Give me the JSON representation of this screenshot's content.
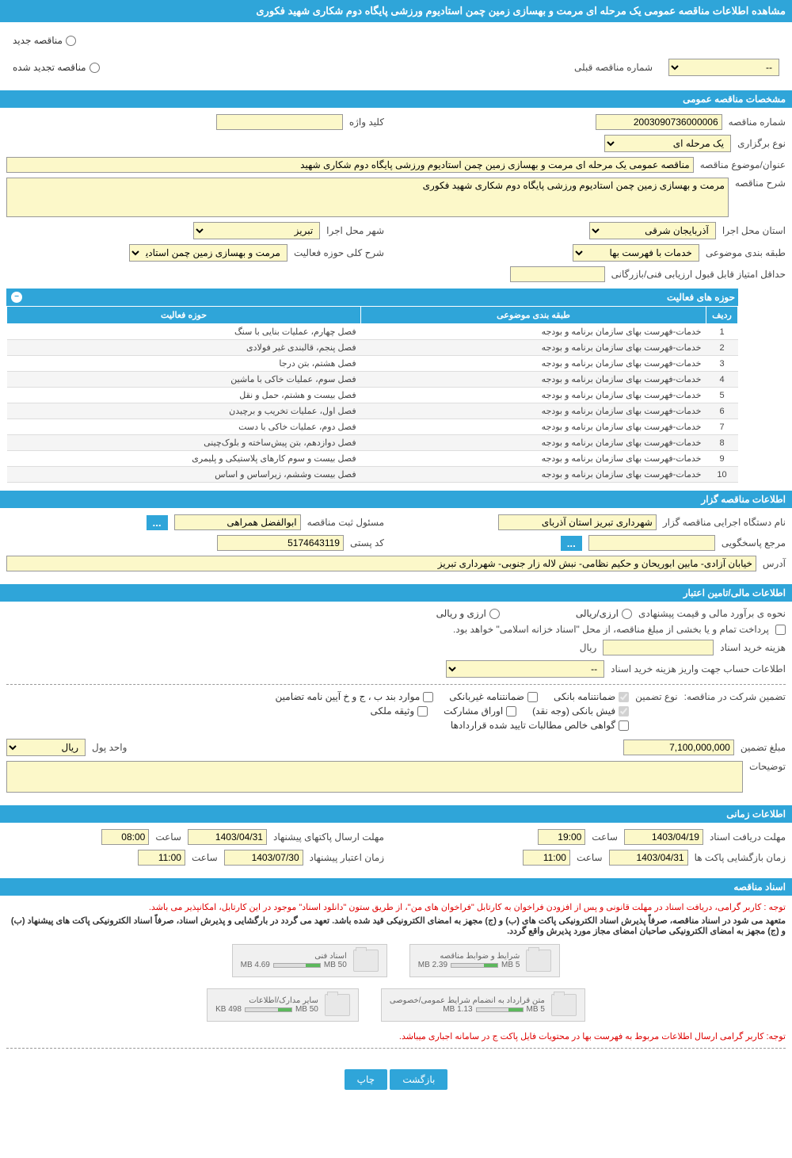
{
  "page_title": "مشاهده اطلاعات مناقصه عمومی یک مرحله ای مرمت و بهسازی زمین چمن استادیوم ورزشی پایگاه دوم شکاری شهید فکوری",
  "radios": {
    "new_tender": "مناقصه جدید",
    "renewed_tender": "مناقصه تجدید شده",
    "prev_tender_label": "شماره مناقصه قبلی",
    "prev_tender_value": "--"
  },
  "sections": {
    "general_spec": "مشخصات مناقصه عمومی",
    "tenderer_info": "اطلاعات مناقصه گزار",
    "financial": "اطلاعات مالی/تامین اعتبار",
    "timing": "اطلاعات زمانی",
    "docs": "اسناد مناقصه"
  },
  "general": {
    "tender_no_label": "شماره مناقصه",
    "tender_no": "2003090736000006",
    "keyword_label": "کلید واژه",
    "keyword": "",
    "holding_type_label": "نوع برگزاری",
    "holding_type": "یک مرحله ای",
    "subject_label": "عنوان/موضوع مناقصه",
    "subject": "مناقصه عمومی یک مرحله ای مرمت و بهسازی زمین چمن استادیوم ورزشی پایگاه دوم شکاری شهید",
    "desc_label": "شرح مناقصه",
    "desc": "مرمت و بهسازی زمین چمن استادیوم ورزشی پایگاه دوم شکاری شهید فکوری",
    "province_label": "استان محل اجرا",
    "province": "آذربایجان شرقی",
    "city_label": "شهر محل اجرا",
    "city": "تبریز",
    "category_label": "طبقه بندی موضوعی",
    "category": "خدمات با فهرست بها",
    "activity_label": "شرح کلی حوزه فعالیت",
    "activity": "مرمت و بهسازی زمین چمن استادیوم ورزشی",
    "min_score_label": "حداقل امتیاز قابل قبول ارزیابی فنی/بازرگانی",
    "min_score": ""
  },
  "activity_areas": {
    "title": "حوزه های فعالیت",
    "col_row": "ردیف",
    "col_category": "طبقه بندی موضوعی",
    "col_area": "حوزه فعالیت",
    "rows": [
      {
        "n": "1",
        "cat": "خدمات-فهرست بهای سازمان برنامه و بودجه",
        "area": "فصل چهارم، عملیات بنایی با سنگ"
      },
      {
        "n": "2",
        "cat": "خدمات-فهرست بهای سازمان برنامه و بودجه",
        "area": "فصل پنجم، قالبندی غیر فولادی"
      },
      {
        "n": "3",
        "cat": "خدمات-فهرست بهای سازمان برنامه و بودجه",
        "area": "فصل هشتم، بتن درجا"
      },
      {
        "n": "4",
        "cat": "خدمات-فهرست بهای سازمان برنامه و بودجه",
        "area": "فصل سوم، عملیات خاکی با ماشین"
      },
      {
        "n": "5",
        "cat": "خدمات-فهرست بهای سازمان برنامه و بودجه",
        "area": "فصل بیست و هشتم، حمل و نقل"
      },
      {
        "n": "6",
        "cat": "خدمات-فهرست بهای سازمان برنامه و بودجه",
        "area": "فصل اول، عملیات تخریب و برچیدن"
      },
      {
        "n": "7",
        "cat": "خدمات-فهرست بهای سازمان برنامه و بودجه",
        "area": "فصل دوم، عملیات خاکی با دست"
      },
      {
        "n": "8",
        "cat": "خدمات-فهرست بهای سازمان برنامه و بودجه",
        "area": "فصل دوازدهم، بتن پیش‌ساخته و بلوک‌چینی"
      },
      {
        "n": "9",
        "cat": "خدمات-فهرست بهای سازمان برنامه و بودجه",
        "area": "فصل بیست و سوم کارهای پلاستیکی و پلیمری"
      },
      {
        "n": "10",
        "cat": "خدمات-فهرست بهای سازمان برنامه و بودجه",
        "area": "فصل بیست وششم، زیراساس و اساس"
      }
    ]
  },
  "tenderer": {
    "org_label": "نام دستگاه اجرایی مناقصه گزار",
    "org": "شهرداری تبریز استان آذربای",
    "reg_label": "مسئول ثبت مناقصه",
    "reg": "ابوالفضل همراهی",
    "resp_label": "مرجع پاسخگویی",
    "resp": "",
    "postal_label": "کد پستی",
    "postal": "5174643119",
    "address_label": "آدرس",
    "address": "خیابان آزادی- مابین ابوریحان و حکیم نظامی- نبش لاله زار جنوبی- شهرداری تبریز"
  },
  "financial": {
    "method_label": "نحوه ی برآورد مالی و قیمت پیشنهادی",
    "opt_currency": "ارزی/ریالی",
    "opt_both": "ارزی و ریالی",
    "payment_note": "پرداخت تمام و یا بخشی از مبلغ مناقصه، از محل \"اسناد خزانه اسلامی\" خواهد بود.",
    "doc_cost_label": "هزینه خرید اسناد",
    "doc_cost": "",
    "currency_unit": "ریال",
    "account_label": "اطلاعات حساب جهت واریز هزینه خرید اسناد",
    "account": "--",
    "guarantee_label": "تضمین شرکت در مناقصه:",
    "guarantee_type_label": "نوع تضمین",
    "chk_bank_guarantee": "ضمانتنامه بانکی",
    "chk_nonbank_guarantee": "ضمانتنامه غیربانکی",
    "chk_bylaw": "موارد بند ب ، ج و خ آیین نامه تضامین",
    "chk_cash": "فیش بانکی (وجه نقد)",
    "chk_securities": "اوراق مشارکت",
    "chk_property": "وثیقه ملکی",
    "chk_claims": "گواهی خالص مطالبات تایید شده قراردادها",
    "amount_label": "مبلغ تضمین",
    "amount": "7,100,000,000",
    "unit_label": "واحد پول",
    "unit": "ریال",
    "notes_label": "توضیحات",
    "notes": ""
  },
  "timing": {
    "receive_deadline_label": "مهلت دریافت اسناد",
    "receive_date": "1403/04/19",
    "time_label": "ساعت",
    "receive_time": "19:00",
    "envelope_deadline_label": "مهلت ارسال پاکتهای پیشنهاد",
    "envelope_date": "1403/04/31",
    "envelope_time": "08:00",
    "opening_label": "زمان بازگشایی پاکت ها",
    "opening_date": "1403/04/31",
    "opening_time": "11:00",
    "validity_label": "زمان اعتبار پیشنهاد",
    "validity_date": "1403/07/30",
    "validity_time": "11:00"
  },
  "docs": {
    "note1": "توجه : کاربر گرامی، دریافت اسناد در مهلت قانونی و پس از افزودن فراخوان به کارتابل \"فراخوان های من\"، از طریق ستون \"دانلود اسناد\" موجود در این کارتابل، امکانپذیر می باشد.",
    "note2": "متعهد می شود در اسناد مناقصه، صرفاً پذیرش اسناد الکترونیکی پاکت های (ب) و (ج) مجهز به امضای الکترونیکی قید شده باشد. تعهد می گردد در بارگشایی و پذیرش اسناد، صرفاً اسناد الکترونیکی پاکت های پیشنهاد (ب) و (ج) مجهز به امضای الکترونیکی صاحبان امضای مجاز مورد پذیرش واقع گردد.",
    "note3": "توجه: کاربر گرامی ارسال اطلاعات مربوط به فهرست بها در محتویات فایل پاکت ج در سامانه اجباری میباشد.",
    "files": [
      {
        "name": "شرایط و ضوابط مناقصه",
        "size": "5 MB",
        "used": "2.39 MB"
      },
      {
        "name": "اسناد فنی",
        "size": "50 MB",
        "used": "4.69 MB"
      },
      {
        "name": "متن قرارداد به انضمام شرایط عمومی/خصوصی",
        "size": "5 MB",
        "used": "1.13 MB"
      },
      {
        "name": "سایر مدارک/اطلاعات",
        "size": "50 MB",
        "used": "498 KB"
      }
    ]
  },
  "buttons": {
    "back": "بازگشت",
    "print": "چاپ"
  }
}
